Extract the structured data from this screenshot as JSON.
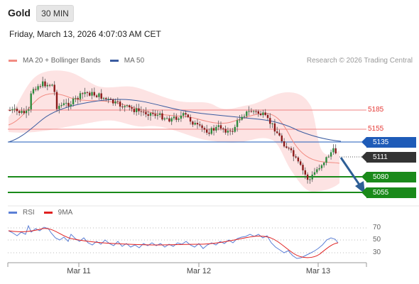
{
  "header": {
    "title": "Gold",
    "timeframe": "30 MIN"
  },
  "datetime": "Friday, March 13, 2026 4:07:03 AM CET",
  "legend": {
    "ma20_label": "MA 20 + Bollinger Bands",
    "ma20_color": "#f28b82",
    "ma50_label": "MA 50",
    "ma50_color": "#3a5ba0"
  },
  "copyright": "Research © 2026 Trading Central",
  "price_levels": {
    "r2": "5185",
    "r1": "5155",
    "pivot": "5135",
    "last": "5111",
    "s1": "5080",
    "s2": "5055"
  },
  "colors": {
    "resistance": "#e53935",
    "pivot": "#1e5bb8",
    "last": "#333333",
    "support": "#1a8a1a",
    "arrow": "#2e5f96",
    "band": "#fde3e3"
  },
  "rsi_legend": {
    "rsi_label": "RSI",
    "rsi_color": "#5b7fd6",
    "ma_label": "9MA",
    "ma_color": "#e02020"
  },
  "rsi_ticks": [
    "70",
    "50",
    "30"
  ],
  "x_axis": [
    "Mar 11",
    "Mar 12",
    "Mar 13"
  ]
}
